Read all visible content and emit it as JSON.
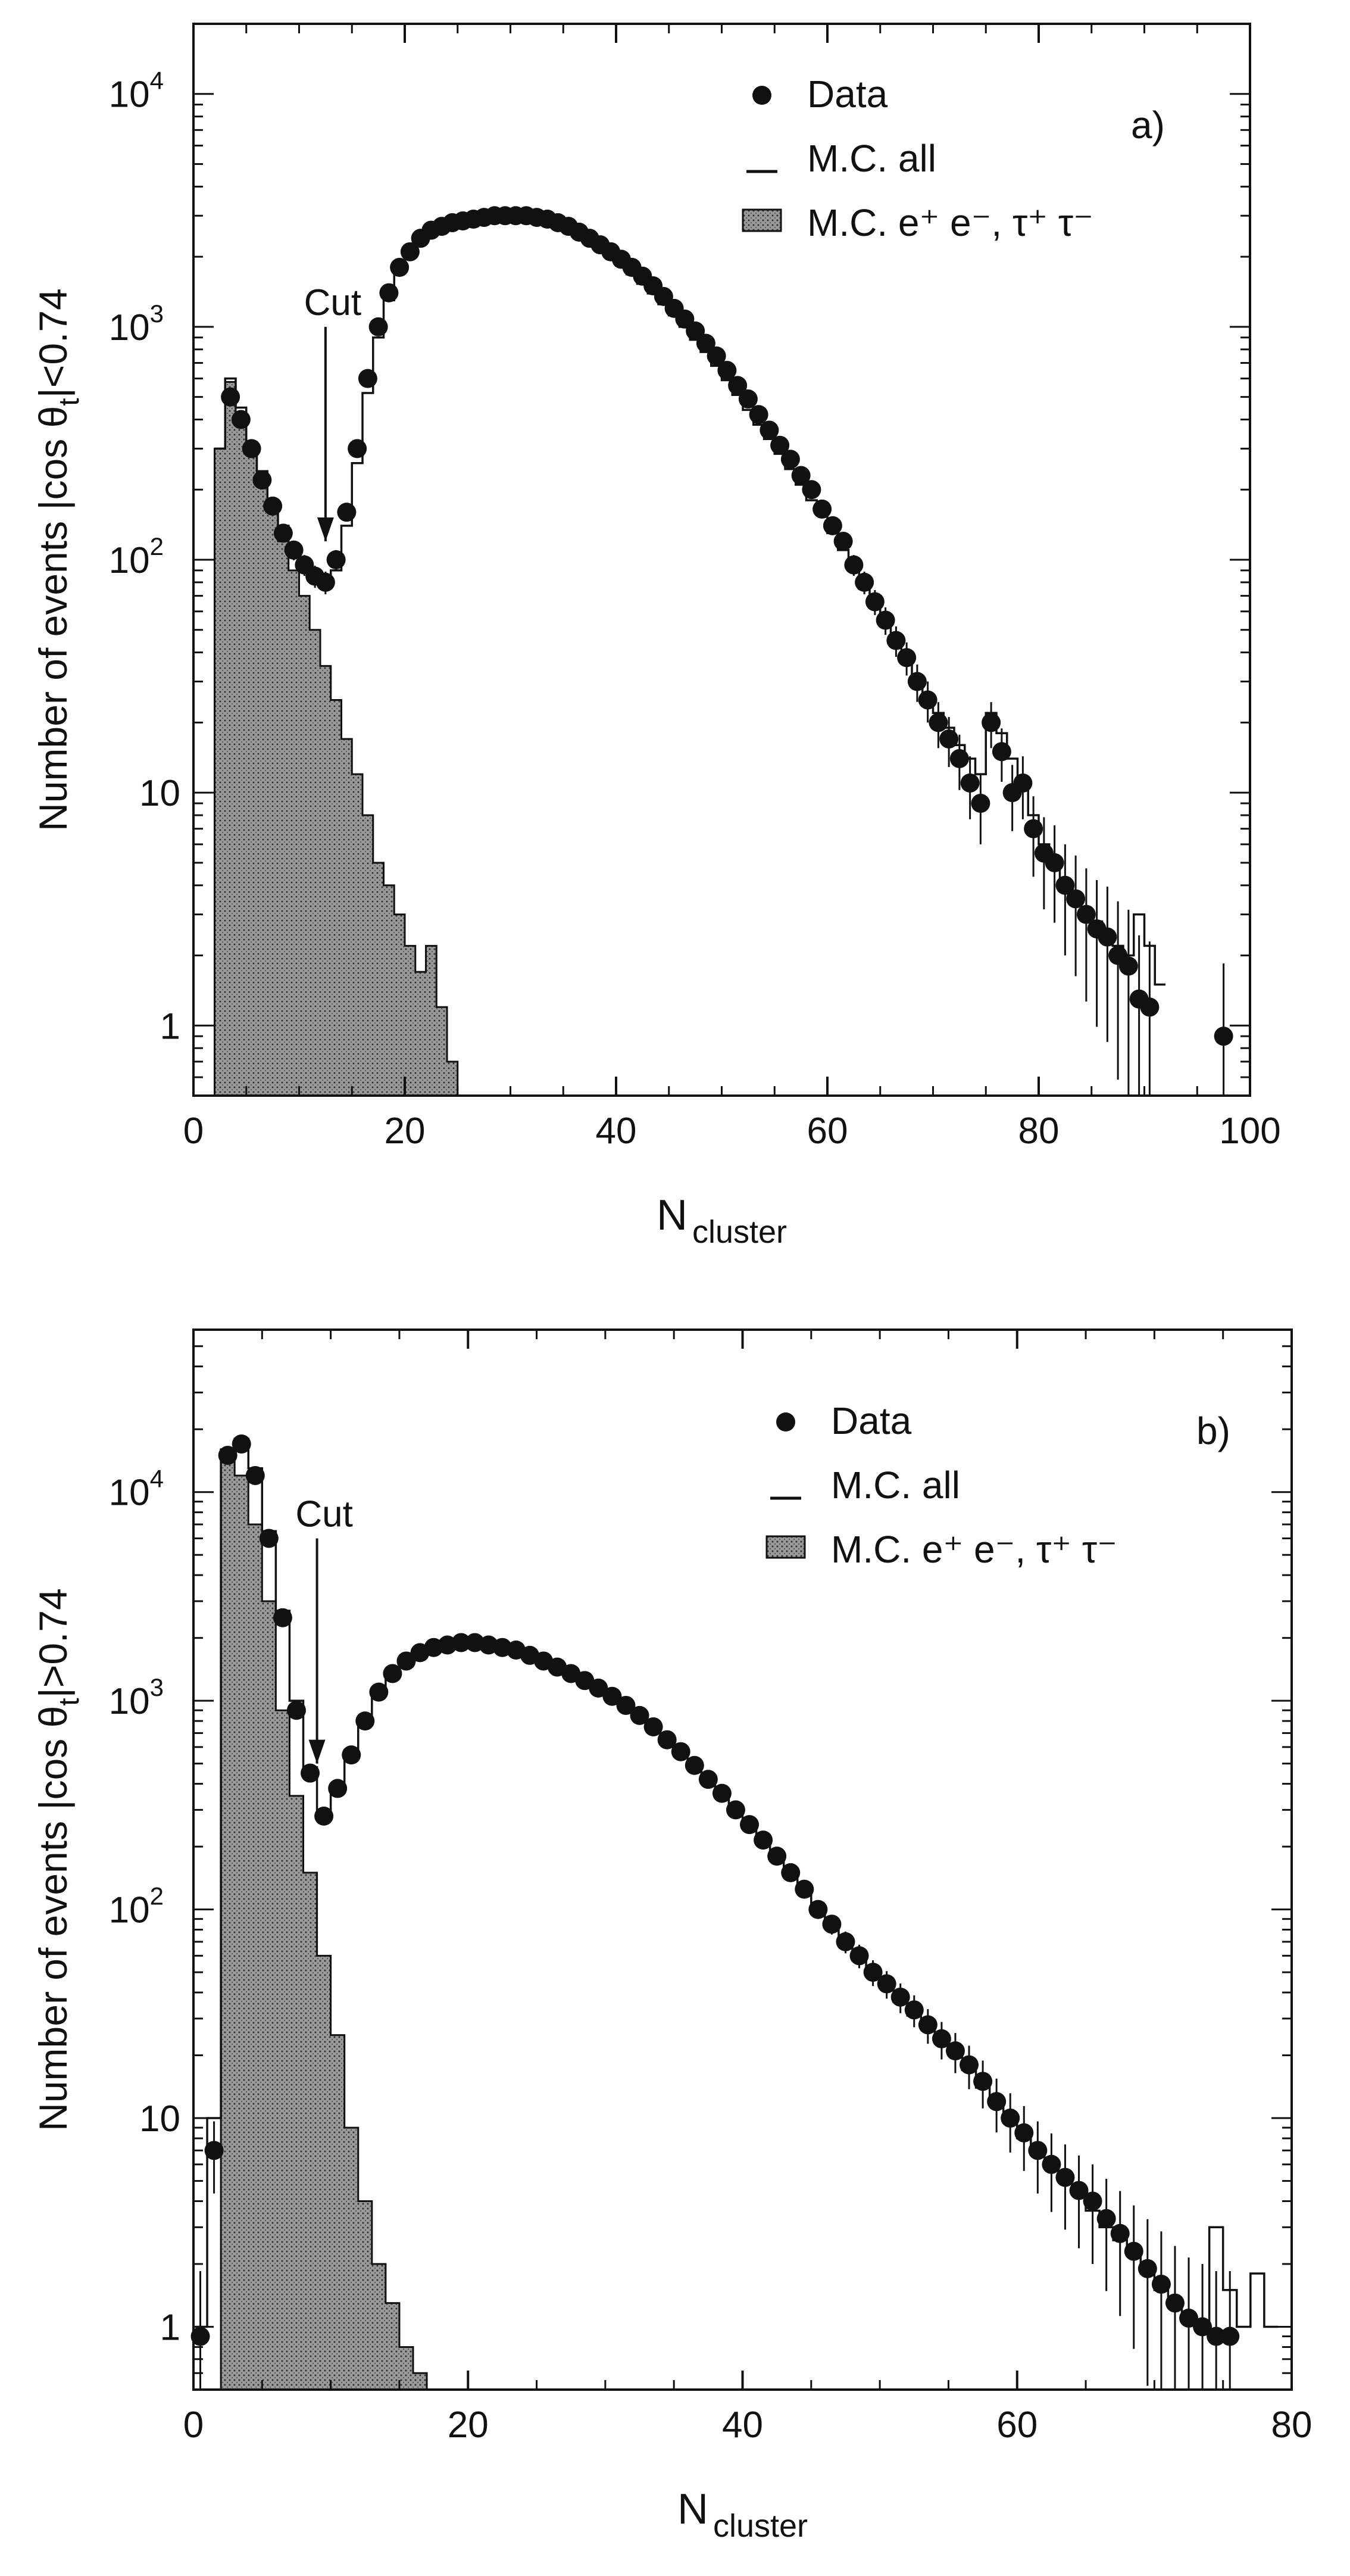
{
  "chart_data": [
    {
      "type": "scatter",
      "panel_label": "a)",
      "xlabel_main": "N",
      "xlabel_sub": "cluster",
      "ylabel_main": "Number of events |cos θ",
      "ylabel_sub": "t",
      "ylabel_cond": "|<0.74",
      "xlim": [
        0,
        100
      ],
      "ylim": [
        0.5,
        20000
      ],
      "y_scale": "log",
      "x_ticks": [
        "0",
        "20",
        "40",
        "60",
        "80",
        "100"
      ],
      "x_tick_values": [
        0,
        20,
        40,
        60,
        80,
        100
      ],
      "y_ticks": [
        {
          "value": 1,
          "label": "1",
          "sup": ""
        },
        {
          "value": 10,
          "label": "10",
          "sup": ""
        },
        {
          "value": 100,
          "label": "10",
          "sup": "2"
        },
        {
          "value": 1000,
          "label": "10",
          "sup": "3"
        },
        {
          "value": 10000,
          "label": "10",
          "sup": "4"
        }
      ],
      "legend": {
        "placement": "top-right",
        "entries": [
          {
            "marker": "dot",
            "label": "Data"
          },
          {
            "marker": "line",
            "label": "M.C.  all"
          },
          {
            "marker": "box",
            "label": "M.C.  e⁺ e⁻, τ⁺ τ⁻"
          }
        ]
      },
      "cut": {
        "label": "Cut",
        "x": 12.5,
        "y_from": 1000,
        "y_to": 120
      },
      "series": [
        {
          "name": "Data",
          "style": "points",
          "x": [
            3,
            4,
            5,
            6,
            7,
            8,
            9,
            10,
            11,
            12,
            13,
            14,
            15,
            16,
            17,
            18,
            19,
            20,
            21,
            22,
            23,
            24,
            25,
            26,
            27,
            28,
            29,
            30,
            31,
            32,
            33,
            34,
            35,
            36,
            37,
            38,
            39,
            40,
            41,
            42,
            43,
            44,
            45,
            46,
            47,
            48,
            49,
            50,
            51,
            52,
            53,
            54,
            55,
            56,
            57,
            58,
            59,
            60,
            61,
            62,
            63,
            64,
            65,
            66,
            67,
            68,
            69,
            70,
            71,
            72,
            73,
            74,
            75,
            76,
            77,
            78,
            79,
            80,
            81,
            82,
            83,
            84,
            85,
            86,
            87,
            88,
            89,
            90,
            97
          ],
          "y": [
            500,
            400,
            300,
            220,
            170,
            130,
            110,
            95,
            85,
            80,
            100,
            160,
            300,
            600,
            1000,
            1400,
            1800,
            2100,
            2400,
            2600,
            2700,
            2800,
            2850,
            2900,
            2950,
            3000,
            3000,
            3000,
            3000,
            2950,
            2900,
            2800,
            2700,
            2550,
            2400,
            2250,
            2100,
            1950,
            1800,
            1650,
            1500,
            1350,
            1200,
            1080,
            960,
            850,
            750,
            650,
            560,
            490,
            420,
            360,
            310,
            270,
            230,
            200,
            165,
            140,
            120,
            95,
            80,
            66,
            55,
            45,
            38,
            30,
            25,
            20,
            17,
            14,
            11,
            9,
            20,
            15,
            10,
            11,
            7,
            5.5,
            5,
            4,
            3.5,
            3,
            2.6,
            2.4,
            2,
            1.8,
            1.3,
            1.2,
            0.9
          ]
        },
        {
          "name": "M.C.  all",
          "style": "step",
          "x": [
            2,
            3,
            4,
            5,
            6,
            7,
            8,
            9,
            10,
            11,
            12,
            13,
            14,
            15,
            16,
            17,
            18,
            19,
            20,
            21,
            22,
            23,
            24,
            25,
            26,
            27,
            28,
            29,
            30,
            31,
            32,
            33,
            34,
            35,
            36,
            37,
            38,
            39,
            40,
            41,
            42,
            43,
            44,
            45,
            46,
            47,
            48,
            49,
            50,
            51,
            52,
            53,
            54,
            55,
            56,
            57,
            58,
            59,
            60,
            61,
            62,
            63,
            64,
            65,
            66,
            67,
            68,
            69,
            70,
            71,
            72,
            73,
            74,
            75,
            76,
            77,
            78,
            79,
            80,
            81,
            82,
            83,
            84,
            85,
            86,
            87,
            88,
            89,
            90,
            91
          ],
          "y": [
            300,
            600,
            450,
            320,
            240,
            170,
            140,
            110,
            95,
            85,
            80,
            90,
            140,
            260,
            520,
            900,
            1300,
            1700,
            2000,
            2300,
            2500,
            2650,
            2750,
            2800,
            2850,
            2900,
            2950,
            2950,
            2950,
            2900,
            2850,
            2780,
            2680,
            2550,
            2420,
            2280,
            2130,
            1980,
            1830,
            1680,
            1530,
            1390,
            1250,
            1120,
            1000,
            880,
            780,
            680,
            590,
            510,
            440,
            380,
            330,
            285,
            245,
            210,
            180,
            155,
            130,
            110,
            90,
            75,
            62,
            52,
            44,
            37,
            31,
            26,
            22,
            19,
            16,
            14,
            12,
            22,
            18,
            14,
            11,
            8,
            6,
            5,
            4,
            3.5,
            3,
            2.8,
            2.5,
            2.2,
            2,
            3,
            2.2,
            1.5
          ]
        },
        {
          "name": "M.C.  e⁺ e⁻, τ⁺ τ⁻",
          "style": "filled",
          "x": [
            2,
            3,
            4,
            5,
            6,
            7,
            8,
            9,
            10,
            11,
            12,
            13,
            14,
            15,
            16,
            17,
            18,
            19,
            20,
            21,
            22,
            23,
            24
          ],
          "y": [
            300,
            580,
            430,
            300,
            220,
            160,
            120,
            90,
            70,
            50,
            35,
            25,
            17,
            12,
            8,
            5,
            4,
            3,
            2.2,
            1.7,
            2.2,
            1.2,
            0.7
          ]
        }
      ]
    },
    {
      "type": "scatter",
      "panel_label": "b)",
      "xlabel_main": "N",
      "xlabel_sub": "cluster",
      "ylabel_main": "Number of events |cos θ",
      "ylabel_sub": "t",
      "ylabel_cond": "|>0.74",
      "xlim": [
        0,
        80
      ],
      "ylim": [
        0.5,
        60000
      ],
      "y_scale": "log",
      "x_ticks": [
        "0",
        "20",
        "40",
        "60",
        "80"
      ],
      "x_tick_values": [
        0,
        20,
        40,
        60,
        80
      ],
      "y_ticks": [
        {
          "value": 1,
          "label": "1",
          "sup": ""
        },
        {
          "value": 10,
          "label": "10",
          "sup": ""
        },
        {
          "value": 100,
          "label": "10",
          "sup": "2"
        },
        {
          "value": 1000,
          "label": "10",
          "sup": "3"
        },
        {
          "value": 10000,
          "label": "10",
          "sup": "4"
        }
      ],
      "legend": {
        "placement": "top-right",
        "entries": [
          {
            "marker": "dot",
            "label": "Data"
          },
          {
            "marker": "line",
            "label": "M.C.  all"
          },
          {
            "marker": "box",
            "label": "M.C.  e⁺ e⁻,  τ⁺ τ⁻"
          }
        ]
      },
      "cut": {
        "label": "Cut",
        "x": 9,
        "y_from": 6000,
        "y_to": 500
      },
      "series": [
        {
          "name": "Data",
          "style": "points",
          "x": [
            0,
            1,
            2,
            3,
            4,
            5,
            6,
            7,
            8,
            9,
            10,
            11,
            12,
            13,
            14,
            15,
            16,
            17,
            18,
            19,
            20,
            21,
            22,
            23,
            24,
            25,
            26,
            27,
            28,
            29,
            30,
            31,
            32,
            33,
            34,
            35,
            36,
            37,
            38,
            39,
            40,
            41,
            42,
            43,
            44,
            45,
            46,
            47,
            48,
            49,
            50,
            51,
            52,
            53,
            54,
            55,
            56,
            57,
            58,
            59,
            60,
            61,
            62,
            63,
            64,
            65,
            66,
            67,
            68,
            69,
            70,
            71,
            72,
            73,
            74,
            75
          ],
          "y": [
            0.9,
            7,
            15000,
            17000,
            12000,
            6000,
            2500,
            900,
            450,
            280,
            380,
            550,
            800,
            1100,
            1350,
            1550,
            1700,
            1800,
            1850,
            1900,
            1900,
            1850,
            1800,
            1750,
            1650,
            1550,
            1450,
            1350,
            1250,
            1150,
            1050,
            950,
            850,
            750,
            650,
            570,
            490,
            420,
            360,
            300,
            255,
            215,
            180,
            150,
            125,
            100,
            85,
            70,
            60,
            50,
            44,
            38,
            33,
            28,
            24,
            21,
            18,
            15,
            12,
            10,
            8.5,
            7,
            6,
            5.2,
            4.5,
            4,
            3.3,
            2.8,
            2.3,
            1.9,
            1.6,
            1.3,
            1.1,
            1,
            0.9,
            0.9
          ]
        },
        {
          "name": "M.C.  all",
          "style": "step",
          "x": [
            0,
            1,
            2,
            3,
            4,
            5,
            6,
            7,
            8,
            9,
            10,
            11,
            12,
            13,
            14,
            15,
            16,
            17,
            18,
            19,
            20,
            21,
            22,
            23,
            24,
            25,
            26,
            27,
            28,
            29,
            30,
            31,
            32,
            33,
            34,
            35,
            36,
            37,
            38,
            39,
            40,
            41,
            42,
            43,
            44,
            45,
            46,
            47,
            48,
            49,
            50,
            51,
            52,
            53,
            54,
            55,
            56,
            57,
            58,
            59,
            60,
            61,
            62,
            63,
            64,
            65,
            66,
            67,
            68,
            69,
            70,
            71,
            72,
            73,
            74,
            75,
            76,
            77,
            78
          ],
          "y": [
            1,
            10,
            16000,
            18000,
            13000,
            6500,
            2700,
            1000,
            480,
            300,
            400,
            580,
            830,
            1120,
            1380,
            1580,
            1720,
            1820,
            1880,
            1920,
            1910,
            1860,
            1810,
            1740,
            1640,
            1540,
            1440,
            1340,
            1240,
            1140,
            1040,
            940,
            840,
            740,
            640,
            560,
            480,
            410,
            350,
            295,
            250,
            210,
            175,
            145,
            120,
            98,
            82,
            68,
            58,
            48,
            42,
            36,
            31,
            27,
            23,
            20,
            17,
            14,
            11.5,
            9.5,
            8,
            6.8,
            5.8,
            5,
            4.3,
            3.6,
            3,
            2.6,
            2.2,
            1.8,
            1.5,
            1.3,
            1.1,
            1,
            3,
            1.5,
            1,
            1.8,
            1
          ]
        },
        {
          "name": "M.C.  e⁺ e⁻,  τ⁺ τ⁻",
          "style": "filled",
          "x": [
            2,
            3,
            4,
            5,
            6,
            7,
            8,
            9,
            10,
            11,
            12,
            13,
            14,
            15,
            16
          ],
          "y": [
            14000,
            12000,
            7000,
            3000,
            900,
            350,
            150,
            60,
            25,
            9,
            4,
            2,
            1.3,
            0.8,
            0.6
          ]
        }
      ]
    }
  ]
}
